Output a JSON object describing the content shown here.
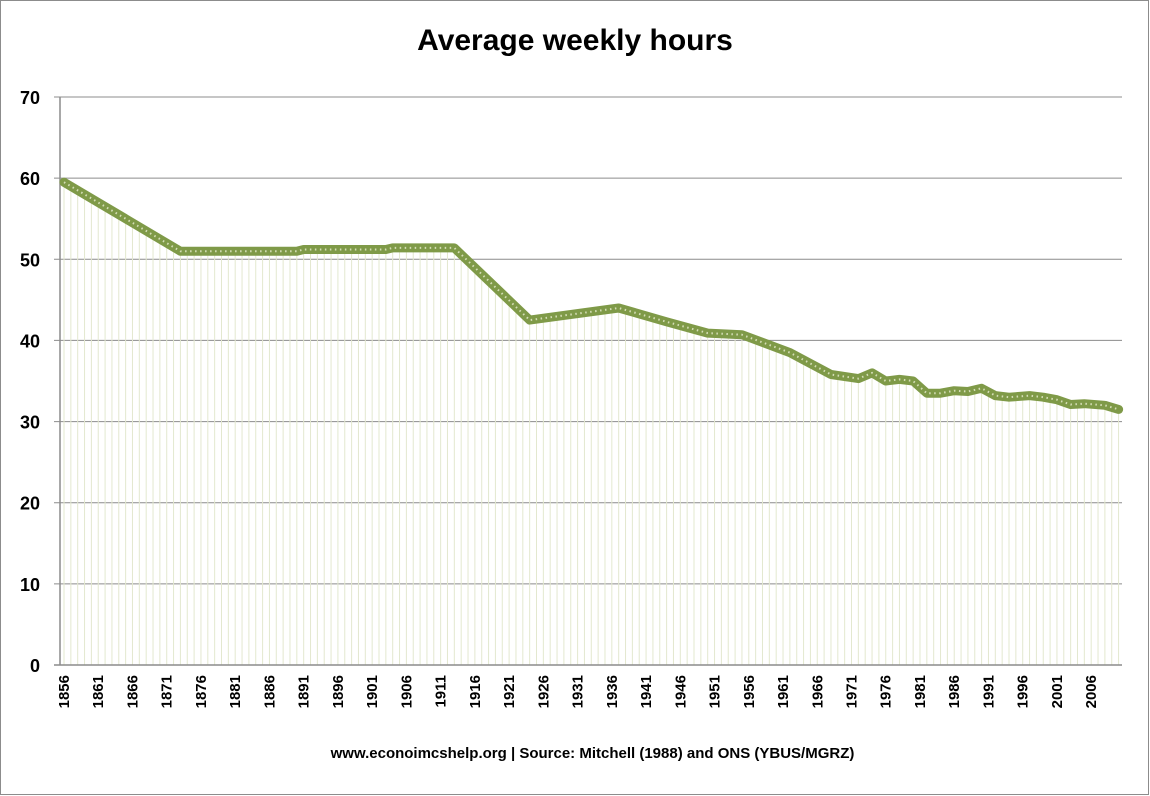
{
  "chart_data": {
    "type": "area",
    "title": "Average weekly hours",
    "footnote": "www.econoimcshelp.org | Source: Mitchell (1988) and ONS (YBUS/MGRZ)",
    "xlabel": "",
    "ylabel": "",
    "ylim": [
      0,
      70
    ],
    "yticks": [
      0,
      10,
      20,
      30,
      40,
      50,
      60,
      70
    ],
    "xticks": [
      "1856",
      "1861",
      "1866",
      "1871",
      "1876",
      "1881",
      "1886",
      "1891",
      "1896",
      "1901",
      "1906",
      "1911",
      "1916",
      "1921",
      "1926",
      "1931",
      "1936",
      "1941",
      "1946",
      "1951",
      "1956",
      "1961",
      "1966",
      "1971",
      "1976",
      "1981",
      "1986",
      "1991",
      "1996",
      "2001",
      "2006"
    ],
    "grid": "horizontal",
    "legend": "none",
    "colors": {
      "line": "#7f9a48",
      "line_dots": "#d4ddb6",
      "fill_hatch": "#e3e8cf",
      "grid": "#8c8c8c"
    },
    "x": [
      1856,
      1873,
      1875,
      1890,
      1891,
      1903,
      1904,
      1913,
      1924,
      1937,
      1944,
      1950,
      1955,
      1962,
      1968,
      1972,
      1974,
      1976,
      1978,
      1980,
      1982,
      1984,
      1986,
      1988,
      1990,
      1992,
      1994,
      1997,
      1999,
      2001,
      2003,
      2005,
      2008,
      2010
    ],
    "values": [
      59.5,
      51.0,
      51.0,
      51.0,
      51.2,
      51.2,
      51.4,
      51.4,
      42.5,
      44.0,
      42.3,
      40.9,
      40.7,
      38.5,
      35.8,
      35.3,
      36.0,
      35.0,
      35.2,
      35.0,
      33.5,
      33.5,
      33.8,
      33.7,
      34.1,
      33.2,
      33.0,
      33.2,
      33.0,
      32.7,
      32.1,
      32.2,
      32.0,
      31.5
    ]
  }
}
